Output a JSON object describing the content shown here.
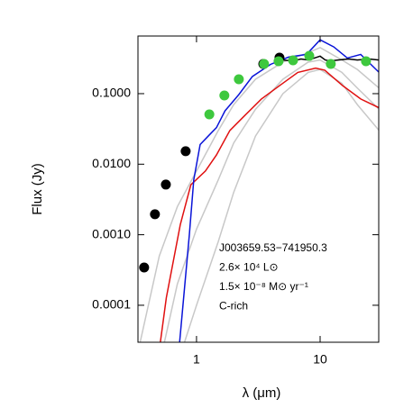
{
  "chart_data": {
    "type": "line",
    "x_label": "λ (μm)",
    "y_label": "Flux (Jy)",
    "xscale": "log",
    "yscale": "log",
    "xlim": [
      0.336,
      29.8
    ],
    "ylim": [
      2.99e-05,
      0.656
    ],
    "xticks": [
      1,
      10
    ],
    "yticks": [
      {
        "value": 0.0001,
        "label": "0.0001"
      },
      {
        "value": 0.001,
        "label": "0.0010"
      },
      {
        "value": 0.01,
        "label": "0.0100"
      },
      {
        "value": 0.1,
        "label": "0.1000"
      }
    ],
    "annotations": [
      "J003659.53−741950.3",
      "2.6× 10⁴ L⊙",
      "1.5× 10⁻⁸ M⊙ yr⁻¹",
      "C-rich"
    ],
    "series": [
      {
        "color": "#c8c8c8",
        "marker": false,
        "x": [
          0.35,
          0.5,
          0.7,
          1,
          1.5,
          2,
          3,
          5,
          8,
          10,
          15,
          20,
          30
        ],
        "values": [
          3e-05,
          0.0005,
          0.0025,
          0.008,
          0.03,
          0.07,
          0.16,
          0.28,
          0.38,
          0.45,
          0.3,
          0.22,
          0.12
        ]
      },
      {
        "color": "#c8c8c8",
        "marker": false,
        "x": [
          0.55,
          0.7,
          1,
          1.5,
          2,
          3,
          5,
          8,
          10,
          15,
          20,
          30
        ],
        "values": [
          3e-05,
          0.0002,
          0.0012,
          0.006,
          0.02,
          0.06,
          0.16,
          0.28,
          0.3,
          0.2,
          0.12,
          0.06
        ]
      },
      {
        "color": "#c8c8c8",
        "marker": false,
        "x": [
          0.8,
          1,
          1.5,
          2,
          3,
          5,
          8,
          10,
          15,
          20,
          30
        ],
        "values": [
          3e-05,
          0.0001,
          0.0008,
          0.004,
          0.025,
          0.1,
          0.2,
          0.22,
          0.14,
          0.07,
          0.03
        ]
      },
      {
        "color": "#e01010",
        "marker": false,
        "x": [
          0.51,
          0.57,
          0.74,
          0.9,
          1.18,
          1.45,
          1.86,
          2.4,
          3.35,
          4.7,
          6.6,
          9.2,
          10.9,
          15.2,
          21.3,
          30
        ],
        "values": [
          3e-05,
          0.000128,
          0.0014,
          0.0051,
          0.008,
          0.0135,
          0.03,
          0.047,
          0.084,
          0.13,
          0.2,
          0.23,
          0.215,
          0.13,
          0.084,
          0.063
        ]
      },
      {
        "color": "#0a14d8",
        "marker": false,
        "x": [
          0.73,
          0.875,
          0.95,
          1.07,
          1.27,
          1.45,
          1.7,
          2.2,
          2.83,
          3.97,
          5.56,
          7.77,
          10,
          12.9,
          16.6,
          21.3,
          30
        ],
        "values": [
          3e-05,
          0.001,
          0.006,
          0.019,
          0.026,
          0.033,
          0.057,
          0.097,
          0.175,
          0.26,
          0.33,
          0.36,
          0.58,
          0.46,
          0.32,
          0.36,
          0.2
        ]
      },
      {
        "color": "#000000",
        "marker": false,
        "x": [
          5,
          6,
          7,
          8,
          9,
          10,
          11,
          12,
          14,
          17,
          20,
          25,
          30
        ],
        "values": [
          0.3,
          0.29,
          0.31,
          0.3,
          0.32,
          0.34,
          0.3,
          0.29,
          0.3,
          0.31,
          0.3,
          0.31,
          0.3
        ]
      },
      {
        "color": "#000000",
        "marker": true,
        "x": [
          0.377,
          0.461,
          0.565,
          0.817,
          3.47,
          4.69
        ],
        "values": [
          0.000343,
          0.00195,
          0.00514,
          0.0153,
          0.264,
          0.324
        ]
      },
      {
        "color": "#3ec83e",
        "marker": true,
        "x": [
          1.27,
          1.68,
          2.2,
          3.52,
          4.61,
          6.04,
          8.17,
          12.2,
          23.5
        ],
        "values": [
          0.0508,
          0.0943,
          0.16,
          0.264,
          0.288,
          0.297,
          0.343,
          0.264,
          0.288
        ]
      }
    ]
  }
}
